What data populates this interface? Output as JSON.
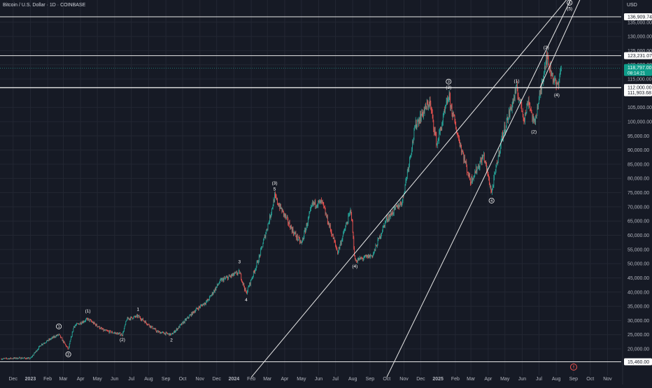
{
  "header": {
    "symbol_title": "Bitcoin / U.S. Dollar · 1D · COINBASE",
    "currency": "USD"
  },
  "colors": {
    "background": "#161a25",
    "up": "#26a69a",
    "down": "#ef5350",
    "text": "#d1d4dc",
    "grid": "#232733",
    "line": "#e8e8e8",
    "price_tag": "#0f9d8a"
  },
  "chart_data": {
    "type": "candlestick",
    "title": "Bitcoin / U.S. Dollar · 1D · COINBASE",
    "ylim": [
      14200,
      143000
    ],
    "y_scale": "linear",
    "grid": true,
    "y_ticks": [
      20000,
      25000,
      30000,
      35000,
      40000,
      45000,
      50000,
      55000,
      60000,
      65000,
      70000,
      75000,
      80000,
      85000,
      90000,
      95000,
      100000,
      105000,
      115000,
      120000,
      125000,
      130000,
      135000
    ],
    "y_tick_labels": [
      "20,000.00",
      "25,000.00",
      "30,000.00",
      "35,000.00",
      "40,000.00",
      "45,000.00",
      "50,000.00",
      "55,000.00",
      "60,000.00",
      "65,000.00",
      "70,000.00",
      "75,000.00",
      "80,000.00",
      "85,000.00",
      "90,000.00",
      "95,000.00",
      "100,000.00",
      "105,000.00",
      "115,000.00",
      "120,000.00",
      "125,000.00",
      "130,000.00",
      "135,000.00"
    ],
    "x_ticks": [
      {
        "date": "2022-12-01",
        "label": "Dec",
        "bold": false
      },
      {
        "date": "2023-01-01",
        "label": "2023",
        "bold": true
      },
      {
        "date": "2023-02-01",
        "label": "Feb",
        "bold": false
      },
      {
        "date": "2023-03-01",
        "label": "Mar",
        "bold": false
      },
      {
        "date": "2023-04-01",
        "label": "Apr",
        "bold": false
      },
      {
        "date": "2023-05-01",
        "label": "May",
        "bold": false
      },
      {
        "date": "2023-06-01",
        "label": "Jun",
        "bold": false
      },
      {
        "date": "2023-07-01",
        "label": "Jul",
        "bold": false
      },
      {
        "date": "2023-08-01",
        "label": "Aug",
        "bold": false
      },
      {
        "date": "2023-09-01",
        "label": "Sep",
        "bold": false
      },
      {
        "date": "2023-10-01",
        "label": "Oct",
        "bold": false
      },
      {
        "date": "2023-11-01",
        "label": "Nov",
        "bold": false
      },
      {
        "date": "2023-12-01",
        "label": "Dec",
        "bold": false
      },
      {
        "date": "2024-01-01",
        "label": "2024",
        "bold": true
      },
      {
        "date": "2024-02-01",
        "label": "Feb",
        "bold": false
      },
      {
        "date": "2024-03-01",
        "label": "Mar",
        "bold": false
      },
      {
        "date": "2024-04-01",
        "label": "Apr",
        "bold": false
      },
      {
        "date": "2024-05-01",
        "label": "May",
        "bold": false
      },
      {
        "date": "2024-06-01",
        "label": "Jun",
        "bold": false
      },
      {
        "date": "2024-07-01",
        "label": "Jul",
        "bold": false
      },
      {
        "date": "2024-08-01",
        "label": "Aug",
        "bold": false
      },
      {
        "date": "2024-09-01",
        "label": "Sep",
        "bold": false
      },
      {
        "date": "2024-10-01",
        "label": "Oct",
        "bold": false
      },
      {
        "date": "2024-11-01",
        "label": "Nov",
        "bold": false
      },
      {
        "date": "2024-12-01",
        "label": "Dec",
        "bold": false
      },
      {
        "date": "2025-01-01",
        "label": "2025",
        "bold": true
      },
      {
        "date": "2025-02-01",
        "label": "Feb",
        "bold": false
      },
      {
        "date": "2025-03-01",
        "label": "Mar",
        "bold": false
      },
      {
        "date": "2025-04-01",
        "label": "Apr",
        "bold": false
      },
      {
        "date": "2025-05-01",
        "label": "May",
        "bold": false
      },
      {
        "date": "2025-06-01",
        "label": "Jun",
        "bold": false
      },
      {
        "date": "2025-07-01",
        "label": "Jul",
        "bold": false
      },
      {
        "date": "2025-08-01",
        "label": "Aug",
        "bold": false
      },
      {
        "date": "2025-09-01",
        "label": "Sep",
        "bold": false
      },
      {
        "date": "2025-10-01",
        "label": "Oct",
        "bold": false
      },
      {
        "date": "2025-11-01",
        "label": "Nov",
        "bold": false
      }
    ],
    "price_path": [
      [
        "2022-11-10",
        16500
      ],
      [
        "2022-12-15",
        16800
      ],
      [
        "2023-01-01",
        16600
      ],
      [
        "2023-01-20",
        21500
      ],
      [
        "2023-02-15",
        24500
      ],
      [
        "2023-02-21",
        25000
      ],
      [
        "2023-03-10",
        19800
      ],
      [
        "2023-03-20",
        28000
      ],
      [
        "2023-04-14",
        30500
      ],
      [
        "2023-05-12",
        26500
      ],
      [
        "2023-06-15",
        25000
      ],
      [
        "2023-06-23",
        30500
      ],
      [
        "2023-07-13",
        31500
      ],
      [
        "2023-08-17",
        26000
      ],
      [
        "2023-09-11",
        25000
      ],
      [
        "2023-10-23",
        33500
      ],
      [
        "2023-11-15",
        37000
      ],
      [
        "2023-12-08",
        44000
      ],
      [
        "2024-01-11",
        47000
      ],
      [
        "2024-01-23",
        39500
      ],
      [
        "2024-02-15",
        52000
      ],
      [
        "2024-03-05",
        66000
      ],
      [
        "2024-03-14",
        73500
      ],
      [
        "2024-04-17",
        61000
      ],
      [
        "2024-05-01",
        57000
      ],
      [
        "2024-05-21",
        71000
      ],
      [
        "2024-06-07",
        71500
      ],
      [
        "2024-07-05",
        54000
      ],
      [
        "2024-07-29",
        69000
      ],
      [
        "2024-08-05",
        51000
      ],
      [
        "2024-09-06",
        53000
      ],
      [
        "2024-09-30",
        65500
      ],
      [
        "2024-10-29",
        72000
      ],
      [
        "2024-11-12",
        88000
      ],
      [
        "2024-11-22",
        99000
      ],
      [
        "2024-12-17",
        107000
      ],
      [
        "2024-12-30",
        92000
      ],
      [
        "2025-01-20",
        109000
      ],
      [
        "2025-02-03",
        97000
      ],
      [
        "2025-02-28",
        79000
      ],
      [
        "2025-03-24",
        88000
      ],
      [
        "2025-04-07",
        75000
      ],
      [
        "2025-04-25",
        94000
      ],
      [
        "2025-05-22",
        111500
      ],
      [
        "2025-06-05",
        101000
      ],
      [
        "2025-06-12",
        108000
      ],
      [
        "2025-06-22",
        99000
      ],
      [
        "2025-07-03",
        109500
      ],
      [
        "2025-07-14",
        123000
      ],
      [
        "2025-07-23",
        117500
      ],
      [
        "2025-08-02",
        112000
      ],
      [
        "2025-08-08",
        117000
      ],
      [
        "2025-08-10",
        118797
      ]
    ],
    "horizontal_levels": [
      {
        "price": 136909.74,
        "label": "136,909.74"
      },
      {
        "price": 123231.07,
        "label": "123,231.07"
      },
      {
        "price": 112000.0,
        "label": "112,000.00"
      },
      {
        "price": 111903.68,
        "label": "111,903.68"
      },
      {
        "price": 15460.0,
        "label": "15,460.00"
      }
    ],
    "current_price": {
      "price": 118797,
      "label": "118,797.00",
      "countdown": "08:14:21"
    },
    "trendlines": [
      {
        "from": [
          "2024-02-01",
          10000
        ],
        "to": [
          "2025-10-10",
          155000
        ]
      },
      {
        "from": [
          "2024-10-01",
          10000
        ],
        "to": [
          "2025-09-01",
          145000
        ]
      },
      {
        "from": [
          "2025-07-03",
          112000
        ],
        "to": [
          "2025-10-15",
          157000
        ]
      }
    ],
    "annotations": [
      {
        "text": "1",
        "date": "2023-02-21",
        "price": 27400,
        "circled": true
      },
      {
        "text": "2",
        "date": "2023-03-10",
        "price": 17600,
        "circled": true
      },
      {
        "text": "(1)",
        "date": "2023-04-14",
        "price": 32800,
        "circled": false
      },
      {
        "text": "(2)",
        "date": "2023-06-15",
        "price": 22700,
        "circled": false
      },
      {
        "text": "1",
        "date": "2023-07-13",
        "price": 33400,
        "circled": false
      },
      {
        "text": "2",
        "date": "2023-09-11",
        "price": 22600,
        "circled": false
      },
      {
        "text": "3",
        "date": "2024-01-11",
        "price": 50200,
        "circled": false
      },
      {
        "text": "4",
        "date": "2024-01-23",
        "price": 36800,
        "circled": false
      },
      {
        "text": "(3)",
        "date": "2024-03-14",
        "price": 77900,
        "circled": false
      },
      {
        "text": "5",
        "date": "2024-03-14",
        "price": 75800,
        "circled": false
      },
      {
        "text": "(4)",
        "date": "2024-08-05",
        "price": 48600,
        "circled": false
      },
      {
        "text": "3",
        "date": "2025-01-20",
        "price": 113600,
        "circled": true
      },
      {
        "text": "(3)",
        "date": "2025-01-20",
        "price": 111600,
        "circled": false
      },
      {
        "text": "4",
        "date": "2025-04-07",
        "price": 71700,
        "circled": true
      },
      {
        "text": "(1)",
        "date": "2025-05-22",
        "price": 113800,
        "circled": false
      },
      {
        "text": "(2)",
        "date": "2025-06-22",
        "price": 95900,
        "circled": false
      },
      {
        "text": "(3)",
        "date": "2025-07-14",
        "price": 125600,
        "circled": false
      },
      {
        "text": "(4)",
        "date": "2025-08-02",
        "price": 108900,
        "circled": false
      },
      {
        "text": "5",
        "date": "2025-08-25",
        "price": 141400,
        "circled": true
      },
      {
        "text": "(5)",
        "date": "2025-08-25",
        "price": 139300,
        "circled": false
      }
    ]
  }
}
